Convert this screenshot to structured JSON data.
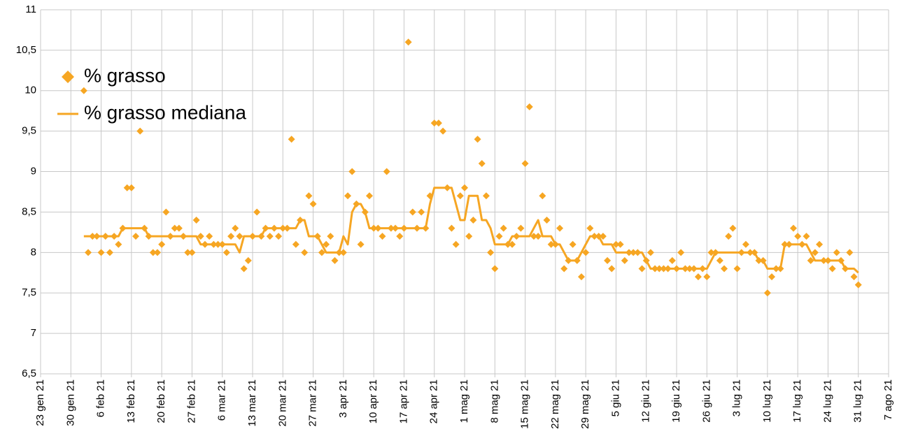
{
  "chart_data": {
    "type": "scatter",
    "grid": true,
    "legend": "upper left",
    "x": [
      "2021-02-02",
      "2021-02-03",
      "2021-02-04",
      "2021-02-05",
      "2021-02-06",
      "2021-02-07",
      "2021-02-08",
      "2021-02-09",
      "2021-02-10",
      "2021-02-11",
      "2021-02-12",
      "2021-02-13",
      "2021-02-14",
      "2021-02-15",
      "2021-02-16",
      "2021-02-17",
      "2021-02-18",
      "2021-02-19",
      "2021-02-20",
      "2021-02-21",
      "2021-02-22",
      "2021-02-23",
      "2021-02-24",
      "2021-02-25",
      "2021-02-26",
      "2021-02-27",
      "2021-02-28",
      "2021-03-01",
      "2021-03-02",
      "2021-03-03",
      "2021-03-04",
      "2021-03-05",
      "2021-03-06",
      "2021-03-07",
      "2021-03-08",
      "2021-03-09",
      "2021-03-10",
      "2021-03-11",
      "2021-03-12",
      "2021-03-13",
      "2021-03-14",
      "2021-03-15",
      "2021-03-16",
      "2021-03-17",
      "2021-03-18",
      "2021-03-19",
      "2021-03-20",
      "2021-03-21",
      "2021-03-22",
      "2021-03-23",
      "2021-03-24",
      "2021-03-25",
      "2021-03-26",
      "2021-03-27",
      "2021-03-28",
      "2021-03-29",
      "2021-03-30",
      "2021-03-31",
      "2021-04-01",
      "2021-04-02",
      "2021-04-03",
      "2021-04-04",
      "2021-04-05",
      "2021-04-06",
      "2021-04-07",
      "2021-04-08",
      "2021-04-09",
      "2021-04-10",
      "2021-04-11",
      "2021-04-12",
      "2021-04-13",
      "2021-04-14",
      "2021-04-15",
      "2021-04-16",
      "2021-04-17",
      "2021-04-18",
      "2021-04-19",
      "2021-04-20",
      "2021-04-21",
      "2021-04-22",
      "2021-04-23",
      "2021-04-24",
      "2021-04-25",
      "2021-04-26",
      "2021-04-27",
      "2021-04-28",
      "2021-04-29",
      "2021-04-30",
      "2021-05-01",
      "2021-05-02",
      "2021-05-03",
      "2021-05-04",
      "2021-05-05",
      "2021-05-06",
      "2021-05-07",
      "2021-05-08",
      "2021-05-09",
      "2021-05-10",
      "2021-05-11",
      "2021-05-12",
      "2021-05-13",
      "2021-05-14",
      "2021-05-15",
      "2021-05-16",
      "2021-05-17",
      "2021-05-18",
      "2021-05-19",
      "2021-05-20",
      "2021-05-21",
      "2021-05-22",
      "2021-05-23",
      "2021-05-24",
      "2021-05-25",
      "2021-05-26",
      "2021-05-27",
      "2021-05-28",
      "2021-05-29",
      "2021-05-30",
      "2021-05-31",
      "2021-06-01",
      "2021-06-02",
      "2021-06-03",
      "2021-06-04",
      "2021-06-05",
      "2021-06-06",
      "2021-06-07",
      "2021-06-08",
      "2021-06-09",
      "2021-06-10",
      "2021-06-11",
      "2021-06-12",
      "2021-06-13",
      "2021-06-14",
      "2021-06-15",
      "2021-06-16",
      "2021-06-17",
      "2021-06-18",
      "2021-06-19",
      "2021-06-20",
      "2021-06-21",
      "2021-06-22",
      "2021-06-23",
      "2021-06-24",
      "2021-06-25",
      "2021-06-26",
      "2021-06-27",
      "2021-06-28",
      "2021-06-29",
      "2021-06-30",
      "2021-07-01",
      "2021-07-02",
      "2021-07-03",
      "2021-07-04",
      "2021-07-05",
      "2021-07-06",
      "2021-07-07",
      "2021-07-08",
      "2021-07-09",
      "2021-07-10",
      "2021-07-11",
      "2021-07-12",
      "2021-07-13",
      "2021-07-14",
      "2021-07-15",
      "2021-07-16",
      "2021-07-17",
      "2021-07-18",
      "2021-07-19",
      "2021-07-20",
      "2021-07-21",
      "2021-07-22",
      "2021-07-23",
      "2021-07-24",
      "2021-07-25",
      "2021-07-26",
      "2021-07-27",
      "2021-07-28",
      "2021-07-29",
      "2021-07-30",
      "2021-07-31"
    ],
    "series": [
      {
        "name": "% grasso",
        "type": "scatter",
        "color": "#f6a623",
        "values": [
          10.0,
          8.0,
          8.2,
          8.2,
          8.0,
          8.2,
          8.0,
          8.2,
          8.1,
          8.3,
          8.8,
          8.8,
          8.2,
          9.5,
          8.3,
          8.2,
          8.0,
          8.0,
          8.1,
          8.5,
          8.2,
          8.3,
          8.3,
          8.2,
          8.0,
          8.0,
          8.4,
          8.2,
          8.1,
          8.2,
          8.1,
          8.1,
          8.1,
          8.0,
          8.2,
          8.3,
          8.2,
          7.8,
          7.9,
          8.2,
          8.5,
          8.2,
          8.3,
          8.2,
          8.3,
          8.2,
          8.3,
          8.3,
          9.4,
          8.1,
          8.4,
          8.0,
          8.7,
          8.6,
          8.2,
          8.0,
          8.1,
          8.2,
          7.9,
          8.0,
          8.0,
          8.7,
          9.0,
          8.6,
          8.1,
          8.5,
          8.7,
          8.3,
          8.3,
          8.2,
          9.0,
          8.3,
          8.3,
          8.2,
          8.3,
          10.6,
          8.5,
          8.3,
          8.5,
          8.3,
          8.7,
          9.6,
          9.6,
          9.5,
          8.8,
          8.3,
          8.1,
          8.7,
          8.8,
          8.2,
          8.4,
          9.4,
          9.1,
          8.7,
          8.0,
          7.8,
          8.2,
          8.3,
          8.1,
          8.1,
          8.2,
          8.3,
          9.1,
          9.8,
          8.2,
          8.2,
          8.7,
          8.4,
          8.1,
          8.1,
          8.3,
          7.8,
          7.9,
          8.1,
          7.9,
          7.7,
          8.0,
          8.3,
          8.2,
          8.2,
          8.2,
          7.9,
          7.8,
          8.1,
          8.1,
          7.9,
          8.0,
          8.0,
          8.0,
          7.8,
          7.9,
          8.0,
          7.8,
          7.8,
          7.8,
          7.8,
          7.9,
          7.8,
          8.0,
          7.8,
          7.8,
          7.8,
          7.7,
          7.8,
          7.7,
          8.0,
          8.0,
          7.9,
          7.8,
          8.2,
          8.3,
          7.8,
          8.0,
          8.1,
          8.0,
          8.0,
          7.9,
          7.9,
          7.5,
          7.7,
          7.8,
          7.8,
          8.1,
          8.1,
          8.3,
          8.2,
          8.1,
          8.2,
          7.9,
          8.0,
          8.1,
          7.9,
          7.9,
          7.8,
          8.0,
          7.9,
          7.8,
          8.0,
          7.7,
          7.6
        ]
      },
      {
        "name": "% grasso mediana",
        "type": "line",
        "color": "#f6a623",
        "values": [
          8.2,
          8.2,
          8.2,
          8.2,
          8.2,
          8.2,
          8.2,
          8.2,
          8.2,
          8.3,
          8.3,
          8.3,
          8.3,
          8.3,
          8.3,
          8.2,
          8.2,
          8.2,
          8.2,
          8.2,
          8.2,
          8.2,
          8.2,
          8.2,
          8.2,
          8.2,
          8.2,
          8.1,
          8.1,
          8.1,
          8.1,
          8.1,
          8.1,
          8.1,
          8.1,
          8.1,
          8.0,
          8.2,
          8.2,
          8.2,
          8.2,
          8.2,
          8.3,
          8.3,
          8.3,
          8.3,
          8.3,
          8.3,
          8.3,
          8.3,
          8.4,
          8.4,
          8.2,
          8.2,
          8.2,
          8.1,
          8.0,
          8.0,
          8.0,
          8.0,
          8.2,
          8.1,
          8.5,
          8.6,
          8.6,
          8.5,
          8.3,
          8.3,
          8.3,
          8.3,
          8.3,
          8.3,
          8.3,
          8.3,
          8.3,
          8.3,
          8.3,
          8.3,
          8.3,
          8.3,
          8.6,
          8.8,
          8.8,
          8.8,
          8.8,
          8.8,
          8.6,
          8.4,
          8.4,
          8.7,
          8.7,
          8.7,
          8.4,
          8.4,
          8.3,
          8.1,
          8.1,
          8.1,
          8.1,
          8.2,
          8.2,
          8.2,
          8.2,
          8.2,
          8.3,
          8.4,
          8.2,
          8.2,
          8.2,
          8.1,
          8.1,
          8.0,
          7.9,
          7.9,
          7.9,
          8.0,
          8.1,
          8.2,
          8.2,
          8.2,
          8.1,
          8.1,
          8.1,
          8.0,
          8.0,
          8.0,
          8.0,
          8.0,
          8.0,
          8.0,
          7.9,
          7.8,
          7.8,
          7.8,
          7.8,
          7.8,
          7.8,
          7.8,
          7.8,
          7.8,
          7.8,
          7.8,
          7.8,
          7.8,
          7.8,
          7.9,
          8.0,
          8.0,
          8.0,
          8.0,
          8.0,
          8.0,
          8.0,
          8.0,
          8.0,
          8.0,
          7.9,
          7.9,
          7.8,
          7.8,
          7.8,
          7.8,
          8.1,
          8.1,
          8.1,
          8.1,
          8.1,
          8.1,
          8.0,
          7.9,
          7.9,
          7.9,
          7.9,
          7.9,
          7.9,
          7.9,
          7.8,
          7.8,
          7.8,
          7.75
        ]
      }
    ],
    "xlim": [
      "2021-01-23",
      "2021-08-07"
    ],
    "xticks": [
      {
        "value": "2021-01-23",
        "label": "23 gen 21"
      },
      {
        "value": "2021-01-30",
        "label": "30 gen 21"
      },
      {
        "value": "2021-02-06",
        "label": "6 feb 21"
      },
      {
        "value": "2021-02-13",
        "label": "13 feb 21"
      },
      {
        "value": "2021-02-20",
        "label": "20 feb 21"
      },
      {
        "value": "2021-02-27",
        "label": "27 feb 21"
      },
      {
        "value": "2021-03-06",
        "label": "6 mar 21"
      },
      {
        "value": "2021-03-13",
        "label": "13 mar 21"
      },
      {
        "value": "2021-03-20",
        "label": "20 mar 21"
      },
      {
        "value": "2021-03-27",
        "label": "27 mar 21"
      },
      {
        "value": "2021-04-03",
        "label": "3 apr 21"
      },
      {
        "value": "2021-04-10",
        "label": "10 apr 21"
      },
      {
        "value": "2021-04-17",
        "label": "17 apr 21"
      },
      {
        "value": "2021-04-24",
        "label": "24 apr 21"
      },
      {
        "value": "2021-05-01",
        "label": "1 mag 21"
      },
      {
        "value": "2021-05-08",
        "label": "8 mag 21"
      },
      {
        "value": "2021-05-15",
        "label": "15 mag 21"
      },
      {
        "value": "2021-05-22",
        "label": "22 mag 21"
      },
      {
        "value": "2021-05-29",
        "label": "29 mag 21"
      },
      {
        "value": "2021-06-05",
        "label": "5 giu 21"
      },
      {
        "value": "2021-06-12",
        "label": "12 giu 21"
      },
      {
        "value": "2021-06-19",
        "label": "19 giu 21"
      },
      {
        "value": "2021-06-26",
        "label": "26 giu 21"
      },
      {
        "value": "2021-07-03",
        "label": "3 lug 21"
      },
      {
        "value": "2021-07-10",
        "label": "10 lug 21"
      },
      {
        "value": "2021-07-17",
        "label": "17 lug 21"
      },
      {
        "value": "2021-07-24",
        "label": "24 lug 21"
      },
      {
        "value": "2021-07-31",
        "label": "31 lug 21"
      },
      {
        "value": "2021-08-07",
        "label": "7 ago 21"
      }
    ],
    "ylim": [
      6.5,
      11
    ],
    "yticks": [
      {
        "value": 6.5,
        "label": "6,5"
      },
      7,
      {
        "value": 7.5,
        "label": "7,5"
      },
      8,
      {
        "value": 8.5,
        "label": "8,5"
      },
      9,
      {
        "value": 9.5,
        "label": "9,5"
      },
      10,
      {
        "value": 10.5,
        "label": "10,5"
      },
      11
    ]
  }
}
